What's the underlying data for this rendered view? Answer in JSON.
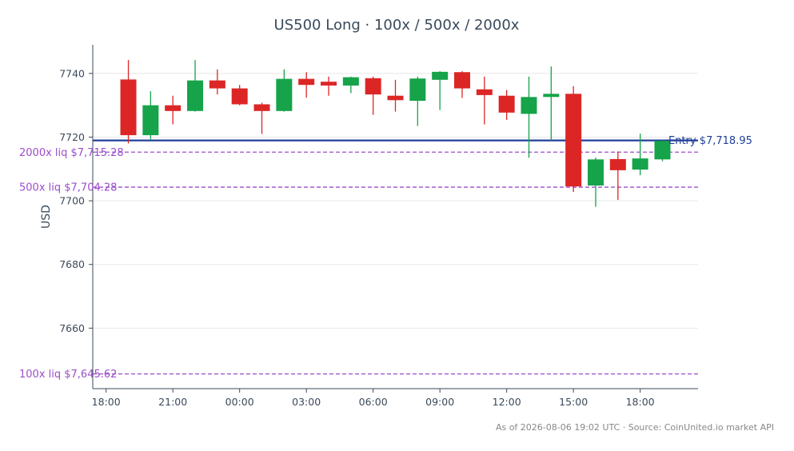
{
  "chart_data": {
    "type": "candlestick",
    "title": "US500 Long · 100x / 500x / 2000x",
    "ylabel": "USD",
    "xlabel": "",
    "ylim": [
      7641,
      7749
    ],
    "y_ticks": [
      7660,
      7680,
      7700,
      7720,
      7740
    ],
    "x_ticks": [
      "18:00",
      "21:00",
      "00:00",
      "03:00",
      "06:00",
      "09:00",
      "12:00",
      "15:00",
      "18:00"
    ],
    "x_tick_hours": [
      18,
      21,
      24,
      27,
      30,
      33,
      36,
      39,
      42
    ],
    "x_range_hours": [
      17.4,
      44.6
    ],
    "candles": [
      {
        "hour": 19,
        "open": 7738.1,
        "high": 7744.2,
        "low": 7718.0,
        "close": 7720.6
      },
      {
        "hour": 20,
        "open": 7720.6,
        "high": 7734.4,
        "low": 7719.0,
        "close": 7730.0
      },
      {
        "hour": 21,
        "open": 7730.0,
        "high": 7733.0,
        "low": 7724.0,
        "close": 7728.2
      },
      {
        "hour": 22,
        "open": 7728.2,
        "high": 7744.2,
        "low": 7728.0,
        "close": 7737.8
      },
      {
        "hour": 23,
        "open": 7737.8,
        "high": 7741.3,
        "low": 7733.4,
        "close": 7735.3
      },
      {
        "hour": 24,
        "open": 7735.3,
        "high": 7736.4,
        "low": 7730.0,
        "close": 7730.3
      },
      {
        "hour": 25,
        "open": 7730.3,
        "high": 7730.8,
        "low": 7721.0,
        "close": 7728.2
      },
      {
        "hour": 26,
        "open": 7728.2,
        "high": 7741.3,
        "low": 7728.0,
        "close": 7738.3
      },
      {
        "hour": 27,
        "open": 7738.3,
        "high": 7740.4,
        "low": 7732.4,
        "close": 7736.4
      },
      {
        "hour": 28,
        "open": 7737.4,
        "high": 7739.0,
        "low": 7733.0,
        "close": 7736.2
      },
      {
        "hour": 29,
        "open": 7736.2,
        "high": 7739.0,
        "low": 7733.8,
        "close": 7738.8
      },
      {
        "hour": 30,
        "open": 7738.5,
        "high": 7739.0,
        "low": 7727.0,
        "close": 7733.4
      },
      {
        "hour": 31,
        "open": 7733.0,
        "high": 7738.0,
        "low": 7728.0,
        "close": 7731.6
      },
      {
        "hour": 32,
        "open": 7731.4,
        "high": 7739.0,
        "low": 7723.5,
        "close": 7738.4
      },
      {
        "hour": 33,
        "open": 7738.0,
        "high": 7740.7,
        "low": 7728.5,
        "close": 7740.5
      },
      {
        "hour": 34,
        "open": 7740.4,
        "high": 7740.7,
        "low": 7732.3,
        "close": 7735.3
      },
      {
        "hour": 35,
        "open": 7735.0,
        "high": 7739.0,
        "low": 7724.0,
        "close": 7733.2
      },
      {
        "hour": 36,
        "open": 7733.0,
        "high": 7734.8,
        "low": 7725.4,
        "close": 7727.7
      },
      {
        "hour": 37,
        "open": 7727.3,
        "high": 7739.0,
        "low": 7713.5,
        "close": 7732.6
      },
      {
        "hour": 38,
        "open": 7732.6,
        "high": 7742.2,
        "low": 7719.0,
        "close": 7733.6
      },
      {
        "hour": 39,
        "open": 7733.6,
        "high": 7736.0,
        "low": 7702.8,
        "close": 7704.5
      },
      {
        "hour": 40,
        "open": 7704.8,
        "high": 7713.6,
        "low": 7698.1,
        "close": 7713.0
      },
      {
        "hour": 41,
        "open": 7713.1,
        "high": 7715.5,
        "low": 7700.3,
        "close": 7709.6
      },
      {
        "hour": 42,
        "open": 7709.8,
        "high": 7721.1,
        "low": 7708.0,
        "close": 7713.3
      },
      {
        "hour": 43,
        "open": 7713.0,
        "high": 7719.0,
        "low": 7712.4,
        "close": 7718.8
      }
    ],
    "lines": [
      {
        "name": "Entry",
        "label": "Entry $7,718.95",
        "value": 7718.95,
        "style": "solid",
        "color": "#1f3f99"
      },
      {
        "name": "2000x liq",
        "label": "2000x liq $7,715.28",
        "value": 7715.28,
        "style": "dashed",
        "color": "#9b4dca"
      },
      {
        "name": "500x liq",
        "label": "500x liq $7,704.28",
        "value": 7704.28,
        "style": "dashed",
        "color": "#9b4dca"
      },
      {
        "name": "100x liq",
        "label": "100x liq $7,645.62",
        "value": 7645.62,
        "style": "dashed",
        "color": "#9b4dca"
      }
    ],
    "colors": {
      "up": "#16a34a",
      "down": "#dc2626",
      "entry": "#1f3f99",
      "liq": "#9b4dca",
      "grid": "#e8e8e8",
      "axis": "#3a4a5a"
    },
    "grid": "horizontal"
  },
  "footer": "As of 2026-08-06 19:02 UTC · Source: CoinUnited.io market API"
}
